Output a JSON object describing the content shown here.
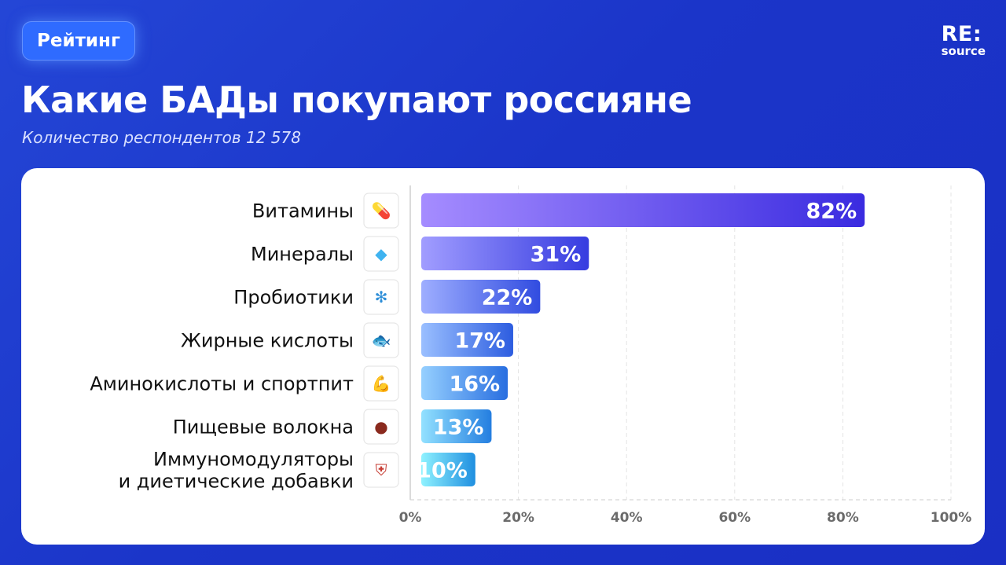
{
  "header": {
    "badge": "Рейтинг",
    "logo_top": "RE:",
    "logo_bottom": "source",
    "title": "Какие БАДы покупают россияне",
    "subtitle": "Количество респондентов 12 578"
  },
  "colors": {
    "background": "#1d36c8",
    "bar_dark": "#3a2be0",
    "bar_light_top": "#a58cff",
    "bar_light_bottom": "#8ff2ff",
    "value_text_outside": "#29b6e8"
  },
  "chart_data": {
    "type": "bar",
    "orientation": "horizontal",
    "categories": [
      "Витамины",
      "Минералы",
      "Пробиотики",
      "Жирные кислоты",
      "Аминокислоты и спортпит",
      "Пищевые волокна",
      "Иммуномодуляторы и диетические добавки"
    ],
    "category_lines": [
      [
        "Витамины"
      ],
      [
        "Минералы"
      ],
      [
        "Пробиотики"
      ],
      [
        "Жирные кислоты"
      ],
      [
        "Аминокислоты и спортпит"
      ],
      [
        "Пищевые волокна"
      ],
      [
        "Иммуномодуляторы",
        "и диетические добавки"
      ]
    ],
    "icons": [
      "pill-icon",
      "gem-icon",
      "bacteria-icon",
      "fish-icon",
      "flexed-biceps-icon",
      "beans-icon",
      "shield-icon"
    ],
    "values": [
      82,
      31,
      22,
      17,
      16,
      13,
      10
    ],
    "value_labels": [
      "82%",
      "31%",
      "22%",
      "17%",
      "16%",
      "13%",
      "10%"
    ],
    "xlim": [
      0,
      100
    ],
    "xticks": [
      0,
      20,
      40,
      60,
      80,
      100
    ],
    "xtick_labels": [
      "0%",
      "20%",
      "40%",
      "60%",
      "80%",
      "100%"
    ],
    "grid": "vertical"
  }
}
